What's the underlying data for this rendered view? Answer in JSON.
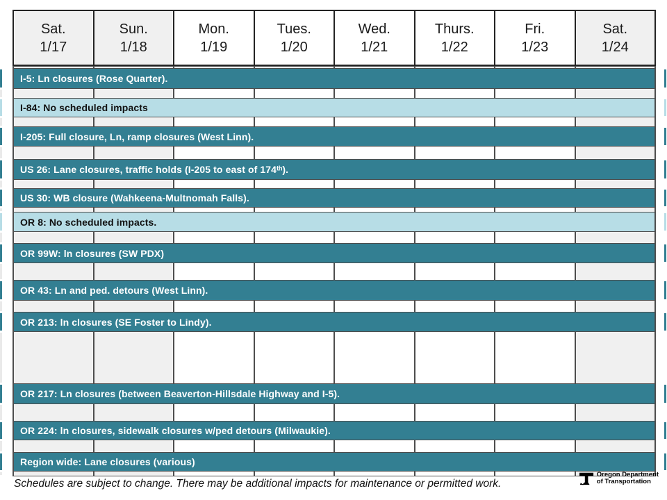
{
  "header": {
    "days": [
      {
        "day": "Sat.",
        "date": "1/17",
        "shaded": true
      },
      {
        "day": "Sun.",
        "date": "1/18",
        "shaded": true
      },
      {
        "day": "Mon.",
        "date": "1/19",
        "shaded": false
      },
      {
        "day": "Tues.",
        "date": "1/20",
        "shaded": false
      },
      {
        "day": "Wed.",
        "date": "1/21",
        "shaded": false
      },
      {
        "day": "Thurs.",
        "date": "1/22",
        "shaded": false
      },
      {
        "day": "Fri.",
        "date": "1/23",
        "shaded": false
      },
      {
        "day": "Sat.",
        "date": "1/24",
        "shaded": true
      }
    ]
  },
  "rows": [
    {
      "label": "I-5: Ln closures (Rose Quarter).",
      "variant": "dark"
    },
    {
      "label": "I-84: No scheduled impacts",
      "variant": "light"
    },
    {
      "label": "I-205: Full closure, Ln, ramp closures (West Linn).",
      "variant": "dark"
    },
    {
      "label": "US 26: Lane closures, traffic holds (I-205 to east of 174ᵗʰ).",
      "variant": "dark"
    },
    {
      "label": "US 30: WB closure (Wahkeena-Multnomah Falls).",
      "variant": "dark"
    },
    {
      "label": "OR 8: No scheduled impacts.",
      "variant": "light"
    },
    {
      "label": "OR 99W: ln closures (SW PDX)",
      "variant": "dark"
    },
    {
      "label": "OR 43: Ln and ped. detours (West Linn).",
      "variant": "dark"
    },
    {
      "label": "OR 213: ln closures (SE Foster to Lindy).",
      "variant": "dark"
    },
    {
      "label": "OR 217: Ln closures (between Beaverton-Hillsdale Highway and I-5).",
      "variant": "dark"
    },
    {
      "label": "OR 224: ln closures, sidewalk closures w/ped detours (Milwaukie).",
      "variant": "dark"
    },
    {
      "label": "Region wide: Lane closures (various)",
      "variant": "dark"
    }
  ],
  "footer": {
    "note": "Schedules are subject to change. There may be additional impacts for maintenance or permitted work.",
    "logo": {
      "line1": "Oregon Department",
      "line2": "of Transportation"
    }
  },
  "colors": {
    "impact_banner": "#337f92",
    "no_impact_banner": "#b7dde6",
    "weekend_cell": "#f0f0f0",
    "grid_border": "#4d4d4d",
    "header_border": "#232323"
  }
}
